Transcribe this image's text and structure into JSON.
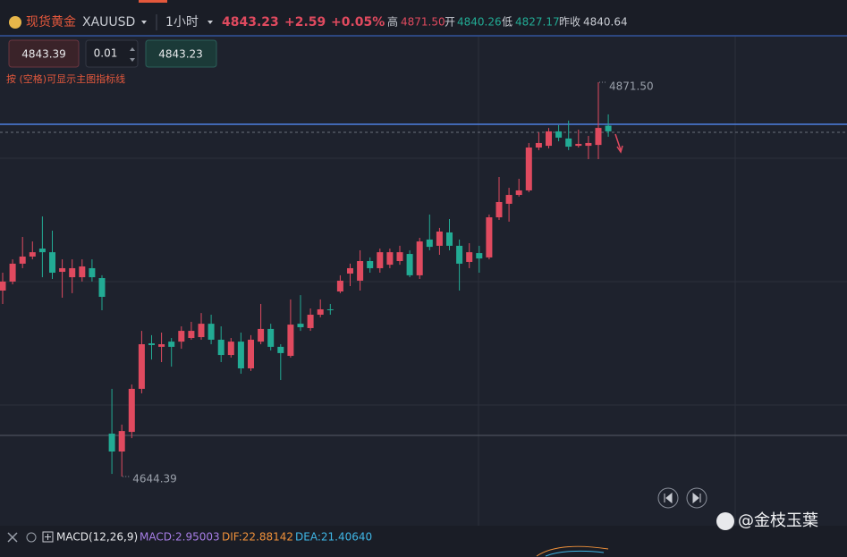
{
  "header": {
    "name": "现货黄金",
    "symbol": "XAUUSD",
    "interval": "1小时",
    "price": "4843.23",
    "change": "+2.59",
    "change_pct": "+0.05%",
    "high_label": "高",
    "high": "4871.50",
    "open_label": "开",
    "open": "4840.26",
    "low_label": "低",
    "low": "4827.17",
    "prev_label": "昨收",
    "prev": "4840.64"
  },
  "trade": {
    "sell": "4843.39",
    "lot": "0.01",
    "buy": "4843.23",
    "hint": "按 (空格)可显示主图指标线"
  },
  "indicator": {
    "name": "MACD(12,26,9)",
    "macd": "MACD:2.95003",
    "dif": "DIF:22.88142",
    "dea": "DEA:21.40640"
  },
  "watermark": "@金枝玉葉",
  "chart_data": {
    "type": "candlestick",
    "up_color": "#e04a5f",
    "down_color": "#22ab94",
    "candles": {
      "open": [
        4751.5,
        4756.7,
        4767.0,
        4771.1,
        4775.7,
        4773.6,
        4762.3,
        4759.2,
        4759.2,
        4764.4,
        4758.7,
        4669.1,
        4658.8,
        4670.1,
        4694.9,
        4721.1,
        4719.1,
        4722.1,
        4722.1,
        4724.2,
        4724.7,
        4732.4,
        4723.2,
        4714.4,
        4722.1,
        4706.7,
        4722.1,
        4729.4,
        4719.1,
        4713.9,
        4732.4,
        4729.9,
        4737.6,
        4740.7,
        4751.0,
        4761.3,
        4757.2,
        4768.5,
        4764.4,
        4766.4,
        4768.5,
        4772.6,
        4760.3,
        4780.9,
        4777.3,
        4785.0,
        4777.3,
        4768.0,
        4773.1,
        4770.6,
        4793.7,
        4801.5,
        4806.6,
        4809.2,
        4833.9,
        4834.9,
        4843.2,
        4839.1,
        4834.9,
        4834.9,
        4835.4,
        4846.5
      ],
      "high": [
        4761.8,
        4769.5,
        4782.4,
        4779.8,
        4794.2,
        4786.0,
        4769.5,
        4769.5,
        4769.5,
        4769.5,
        4760.3,
        4694.9,
        4674.3,
        4697.4,
        4728.3,
        4725.8,
        4727.3,
        4724.2,
        4730.9,
        4733.5,
        4738.6,
        4737.6,
        4730.9,
        4724.2,
        4727.3,
        4725.8,
        4743.8,
        4732.4,
        4720.6,
        4746.4,
        4748.9,
        4741.2,
        4746.4,
        4743.8,
        4760.3,
        4767.0,
        4774.7,
        4770.6,
        4775.7,
        4775.7,
        4777.3,
        4774.7,
        4781.9,
        4795.3,
        4787.6,
        4792.7,
        4780.9,
        4778.8,
        4777.3,
        4795.3,
        4816.9,
        4810.7,
        4815.9,
        4836.5,
        4842.7,
        4845.2,
        4846.8,
        4849.4,
        4844.2,
        4840.6,
        4871.5,
        4853.0
      ],
      "low": [
        4743.8,
        4755.1,
        4764.4,
        4769.5,
        4759.2,
        4758.2,
        4747.4,
        4750.0,
        4756.7,
        4756.7,
        4740.2,
        4645.9,
        4644.39,
        4666.5,
        4692.3,
        4711.8,
        4710.3,
        4707.7,
        4718.0,
        4723.2,
        4723.2,
        4720.6,
        4710.3,
        4712.9,
        4703.6,
        4705.2,
        4720.6,
        4717.0,
        4700.0,
        4712.9,
        4728.3,
        4728.3,
        4736.1,
        4737.6,
        4750.0,
        4754.1,
        4751.5,
        4761.8,
        4761.8,
        4764.4,
        4766.4,
        4759.2,
        4758.2,
        4774.7,
        4772.1,
        4774.7,
        4751.5,
        4764.4,
        4761.8,
        4769.5,
        4792.2,
        4791.2,
        4805.6,
        4808.2,
        4832.4,
        4833.4,
        4837.5,
        4832.4,
        4833.9,
        4827.2,
        4827.2,
        4840.1
      ],
      "close": [
        4756.7,
        4767.0,
        4771.1,
        4773.6,
        4773.6,
        4761.8,
        4764.4,
        4764.4,
        4765.4,
        4759.2,
        4747.9,
        4658.8,
        4670.6,
        4694.9,
        4720.6,
        4720.1,
        4720.6,
        4719.1,
        4728.3,
        4728.3,
        4732.4,
        4723.2,
        4714.4,
        4722.1,
        4706.7,
        4723.2,
        4729.4,
        4719.1,
        4715.5,
        4731.9,
        4730.4,
        4737.6,
        4740.7,
        4740.2,
        4757.2,
        4764.4,
        4768.5,
        4764.4,
        4773.6,
        4773.6,
        4773.6,
        4760.3,
        4779.8,
        4776.7,
        4785.5,
        4777.3,
        4767.0,
        4773.6,
        4770.0,
        4793.7,
        4802.5,
        4806.6,
        4809.2,
        4833.9,
        4836.5,
        4843.2,
        4839.6,
        4834.4,
        4836.0,
        4836.5,
        4845.2,
        4843.23
      ]
    },
    "annotations": [
      {
        "value": 4871.5,
        "label": "4871.50"
      },
      {
        "value": 4644.39,
        "label": "4644.39"
      }
    ]
  }
}
